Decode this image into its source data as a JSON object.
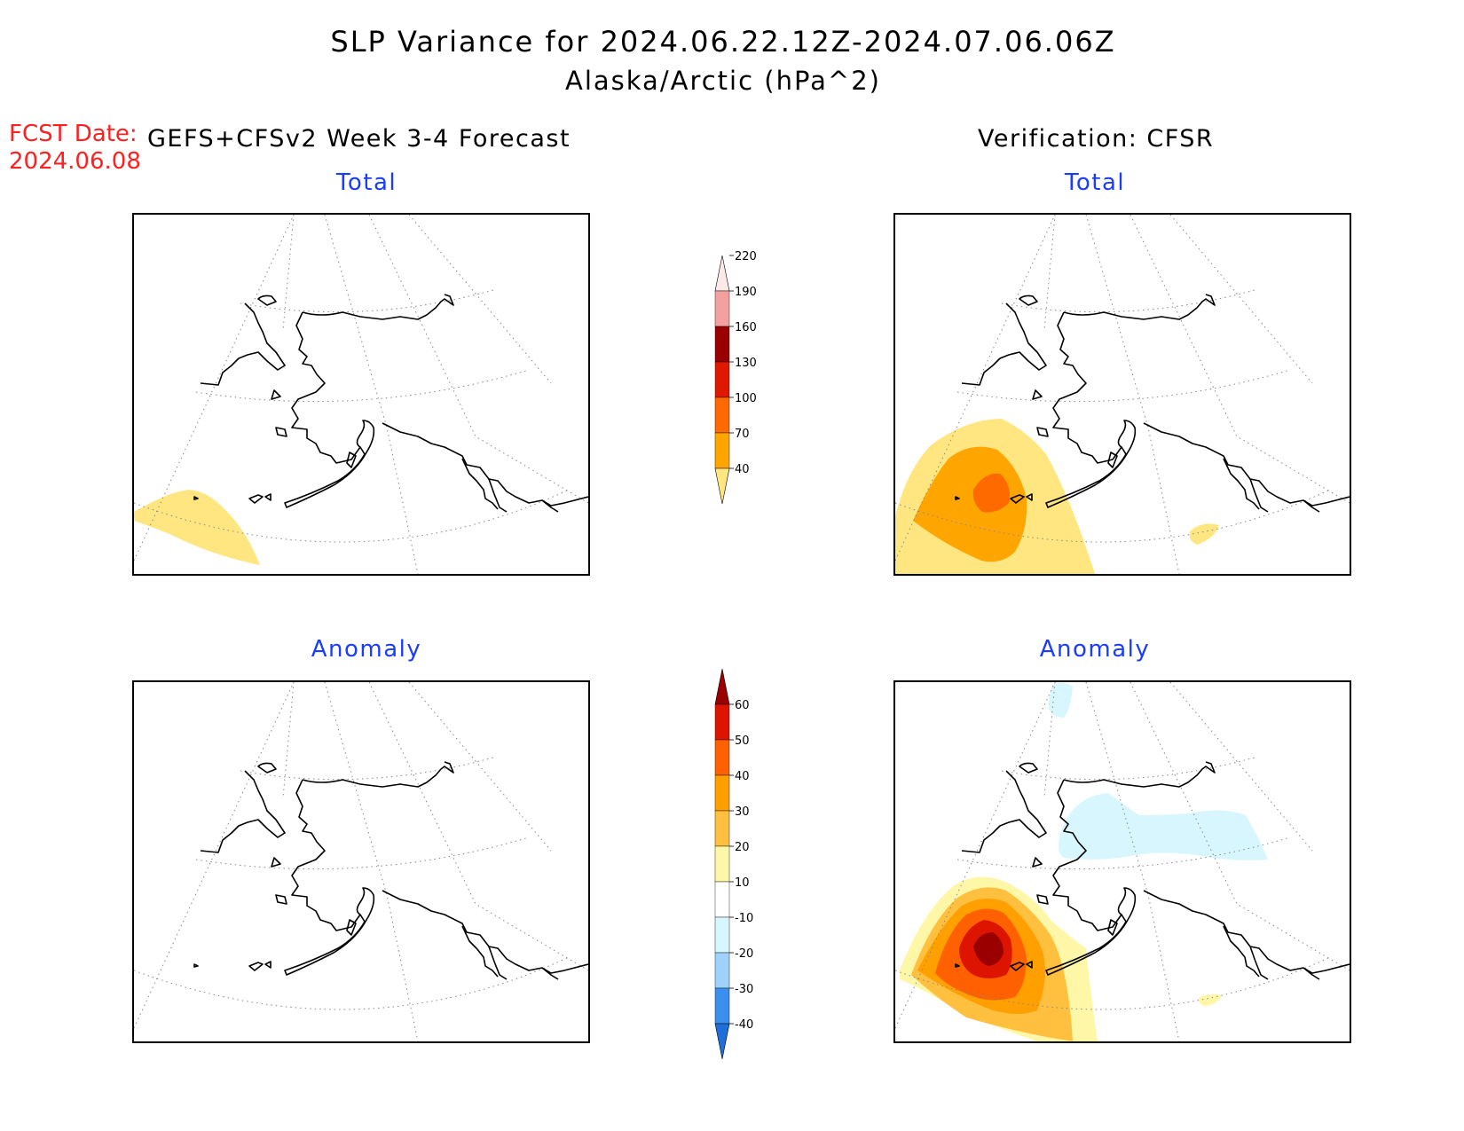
{
  "header": {
    "title": "SLP Variance for 2024.06.22.12Z-2024.07.06.06Z",
    "subtitle": "Alaska/Arctic (hPa^2)",
    "fcst_label": "FCST Date:",
    "fcst_date": "2024.06.08",
    "model": "GEFS+CFSv2 Week 3-4 Forecast",
    "verification": "Verification: CFSR"
  },
  "panels": {
    "forecast_total": {
      "title": "Total"
    },
    "forecast_anomaly": {
      "title": "Anomaly"
    },
    "verif_total": {
      "title": "Total"
    },
    "verif_anomaly": {
      "title": "Anomaly"
    }
  },
  "colorbars": {
    "total": {
      "levels": [
        "40",
        "70",
        "100",
        "130",
        "160",
        "190",
        "220"
      ],
      "colors": [
        "#ffe680",
        "#ffa500",
        "#ff6a00",
        "#dd1a00",
        "#9a0000",
        "#f2a0a0",
        "#ffe8e8"
      ]
    },
    "anomaly": {
      "levels": [
        "-40",
        "-30",
        "-20",
        "-10",
        "10",
        "20",
        "30",
        "40",
        "50",
        "60"
      ],
      "colors": [
        "#1e6fd9",
        "#3b90ef",
        "#9fd2fb",
        "#d8f6fd",
        "#ffffff",
        "#fff7a8",
        "#ffc040",
        "#ffa000",
        "#ff6000",
        "#dd1500",
        "#9a0000"
      ]
    }
  },
  "map_colors": {
    "coast": "#000000",
    "grid": "#888888"
  }
}
